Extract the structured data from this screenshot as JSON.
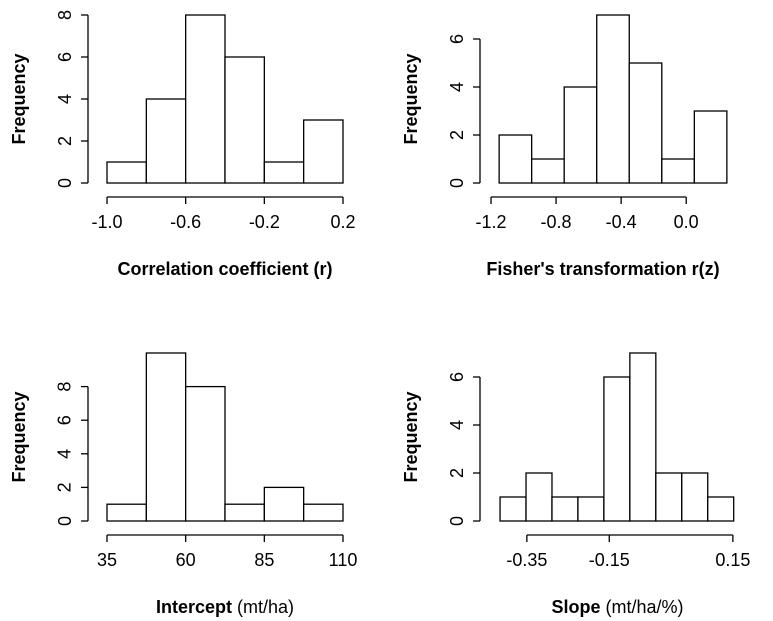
{
  "chart_data": [
    {
      "type": "histogram",
      "xlabel": "Correlation coefficient (r)",
      "ylabel": "Frequency",
      "color": "#ffffff",
      "bins": [
        -1.0,
        -0.8,
        -0.6,
        -0.4,
        -0.2,
        0.0,
        0.2
      ],
      "values": [
        1,
        4,
        8,
        6,
        1,
        3
      ],
      "xlim": [
        -1.0,
        0.2
      ],
      "ylim": [
        0,
        8
      ],
      "xticks": [
        {
          "value": -1.0,
          "label": "-1.0"
        },
        -0.6,
        -0.2,
        0.2
      ],
      "yticks": [
        0,
        2,
        4,
        6,
        8
      ]
    },
    {
      "type": "histogram",
      "xlabel": "Fisher's transformation r(z)",
      "ylabel": "Frequency",
      "color": "#ffffff",
      "bins": [
        -1.15,
        -0.95,
        -0.75,
        -0.55,
        -0.35,
        -0.15,
        0.05,
        0.25
      ],
      "values": [
        2,
        1,
        4,
        7,
        5,
        1,
        3
      ],
      "xlim": [
        -1.2,
        0.3
      ],
      "ylim": [
        0,
        7
      ],
      "xticks": [
        -1.2,
        -0.8,
        -0.4,
        {
          "value": 0.0,
          "label": "0.0"
        }
      ],
      "yticks": [
        0,
        2,
        4,
        6
      ]
    },
    {
      "type": "histogram",
      "xlabel": "Intercept",
      "xlabel_unit": "(mt/ha)",
      "ylabel": "Frequency",
      "color": "#ffffff",
      "bins": [
        35,
        47.5,
        60,
        72.5,
        85,
        97.5,
        110
      ],
      "values": [
        1,
        10,
        8,
        1,
        2,
        1
      ],
      "xlim": [
        35,
        110
      ],
      "ylim": [
        0,
        10
      ],
      "xticks": [
        35,
        60,
        85,
        110
      ],
      "yticks": [
        0,
        2,
        4,
        6,
        8
      ]
    },
    {
      "type": "histogram",
      "xlabel": "Slope",
      "xlabel_unit": "(mt/ha/%)",
      "ylabel": "Frequency",
      "color": "#ffffff",
      "bins": [
        -0.415,
        -0.352,
        -0.289,
        -0.226,
        -0.163,
        -0.1,
        -0.037,
        0.026,
        0.089,
        0.152
      ],
      "values": [
        1,
        2,
        1,
        1,
        6,
        7,
        2,
        2,
        1
      ],
      "xlim": [
        -0.42,
        0.16
      ],
      "ylim": [
        0,
        7
      ],
      "xticks": [
        -0.35,
        -0.15,
        0.15
      ],
      "yticks": [
        0,
        2,
        4,
        6
      ]
    }
  ]
}
